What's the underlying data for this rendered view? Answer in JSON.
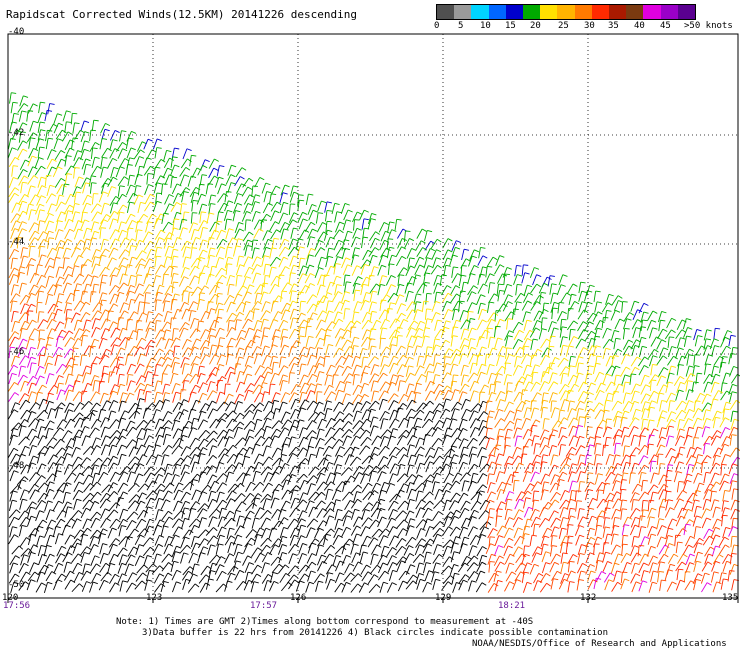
{
  "title": "Rapidscat Corrected Winds(12.5KM) 20141226 descending",
  "legend": {
    "colors": [
      "#505050",
      "#9a9a9a",
      "#00d4ff",
      "#0066ff",
      "#0000cc",
      "#00aa00",
      "#ffe000",
      "#ffb400",
      "#ff7a00",
      "#ff2a00",
      "#aa1a00",
      "#7a3a10",
      "#e000e0",
      "#9a00c8",
      "#5a0090"
    ],
    "labels": [
      {
        "text": "0",
        "offset": 0
      },
      {
        "text": "5",
        "offset": 24
      },
      {
        "text": "10",
        "offset": 46
      },
      {
        "text": "15",
        "offset": 71
      },
      {
        "text": "20",
        "offset": 96
      },
      {
        "text": "25",
        "offset": 124
      },
      {
        "text": "30",
        "offset": 150
      },
      {
        "text": "35",
        "offset": 174
      },
      {
        "text": "40",
        "offset": 200
      },
      {
        "text": "45",
        "offset": 226
      },
      {
        "text": ">50 knots",
        "offset": 250
      }
    ]
  },
  "map": {
    "lat_labels": [
      "-40",
      "-42",
      "-44",
      "-46",
      "-48",
      "-50"
    ],
    "lon_labels": [
      "120",
      "123",
      "126",
      "129",
      "132",
      "135"
    ],
    "time_labels": [
      "17:56",
      "17:57",
      "18:21"
    ]
  },
  "notes": {
    "line1": "Note: 1) Times are GMT 2)Times along bottom correspond to measurement at -40S",
    "line2": "3)Data buffer is 22 hrs from 20141226 4) Black circles indicate possible contamination",
    "line3": "NOAA/NESDIS/Office of Research and Applications"
  }
}
